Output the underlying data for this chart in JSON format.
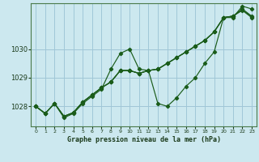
{
  "title": "Graphe pression niveau de la mer (hPa)",
  "background_color": "#cce8ef",
  "grid_color": "#a0c8d8",
  "line_color": "#1a5c1a",
  "xlim": [
    -0.5,
    23.5
  ],
  "ylim": [
    1027.3,
    1031.6
  ],
  "yticks": [
    1028,
    1029,
    1030
  ],
  "xticks": [
    0,
    1,
    2,
    3,
    4,
    5,
    6,
    7,
    8,
    9,
    10,
    11,
    12,
    13,
    14,
    15,
    16,
    17,
    18,
    19,
    20,
    21,
    22,
    23
  ],
  "series": [
    [
      1028.0,
      1027.75,
      1028.1,
      1027.6,
      1027.75,
      1028.1,
      1028.35,
      1028.6,
      1029.3,
      1029.85,
      1030.0,
      1029.3,
      1029.25,
      1028.1,
      1028.0,
      1028.3,
      1028.7,
      1029.0,
      1029.5,
      1029.9,
      1031.1,
      1031.1,
      1031.5,
      1031.4
    ],
    [
      1028.0,
      1027.75,
      1028.1,
      1027.65,
      1027.78,
      1028.15,
      1028.4,
      1028.65,
      1028.85,
      1029.25,
      1029.25,
      1029.15,
      1029.25,
      1029.3,
      1029.5,
      1029.7,
      1029.9,
      1030.1,
      1030.3,
      1030.6,
      1031.1,
      1031.15,
      1031.35,
      1031.1
    ],
    [
      1028.0,
      1027.75,
      1028.1,
      1027.65,
      1027.78,
      1028.15,
      1028.4,
      1028.65,
      1028.85,
      1029.25,
      1029.25,
      1029.15,
      1029.25,
      1029.3,
      1029.5,
      1029.7,
      1029.9,
      1030.1,
      1030.3,
      1030.6,
      1031.1,
      1031.15,
      1031.4,
      1031.15
    ],
    [
      1028.0,
      1027.75,
      1028.1,
      1027.65,
      1027.78,
      1028.15,
      1028.4,
      1028.65,
      1028.85,
      1029.25,
      1029.25,
      1029.15,
      1029.25,
      1029.3,
      1029.5,
      1029.7,
      1029.9,
      1030.1,
      1030.3,
      1030.6,
      1031.1,
      1031.15,
      1031.38,
      1031.12
    ]
  ]
}
